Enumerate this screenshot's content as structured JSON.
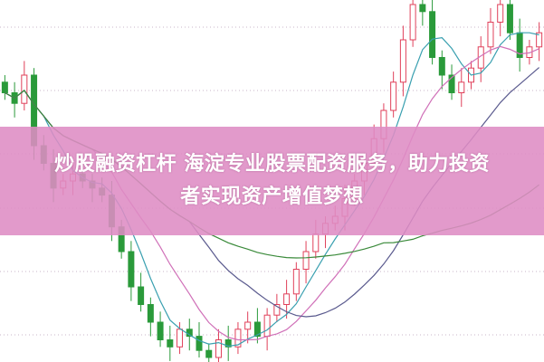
{
  "banner": {
    "line1": "炒股融资杠杆 海淀专业股票配资服务，助力投资",
    "line2": "者实现资产增值梦想"
  },
  "chart_data": {
    "type": "candlestick",
    "up_color": "#e0405a",
    "down_color": "#2a9a3a",
    "grid": true,
    "closes": [
      75,
      72,
      80,
      60,
      55,
      48,
      50,
      52,
      50,
      48,
      46,
      37,
      30,
      20,
      15,
      10,
      5,
      3,
      8,
      6,
      2,
      0,
      5,
      3,
      8,
      10,
      6,
      12,
      15,
      18,
      25,
      30,
      35,
      38,
      40,
      45,
      50,
      55,
      62,
      70,
      78,
      90,
      100,
      98,
      85,
      80,
      75,
      78,
      82,
      88,
      95,
      100,
      92,
      85,
      88,
      92
    ],
    "moving_averages": [
      {
        "period": 5,
        "color": "#3aa0b0"
      },
      {
        "period": 10,
        "color": "#d070b8"
      },
      {
        "period": 20,
        "color": "#5a5a8e"
      },
      {
        "period": 40,
        "color": "#3a8a3a"
      }
    ]
  }
}
